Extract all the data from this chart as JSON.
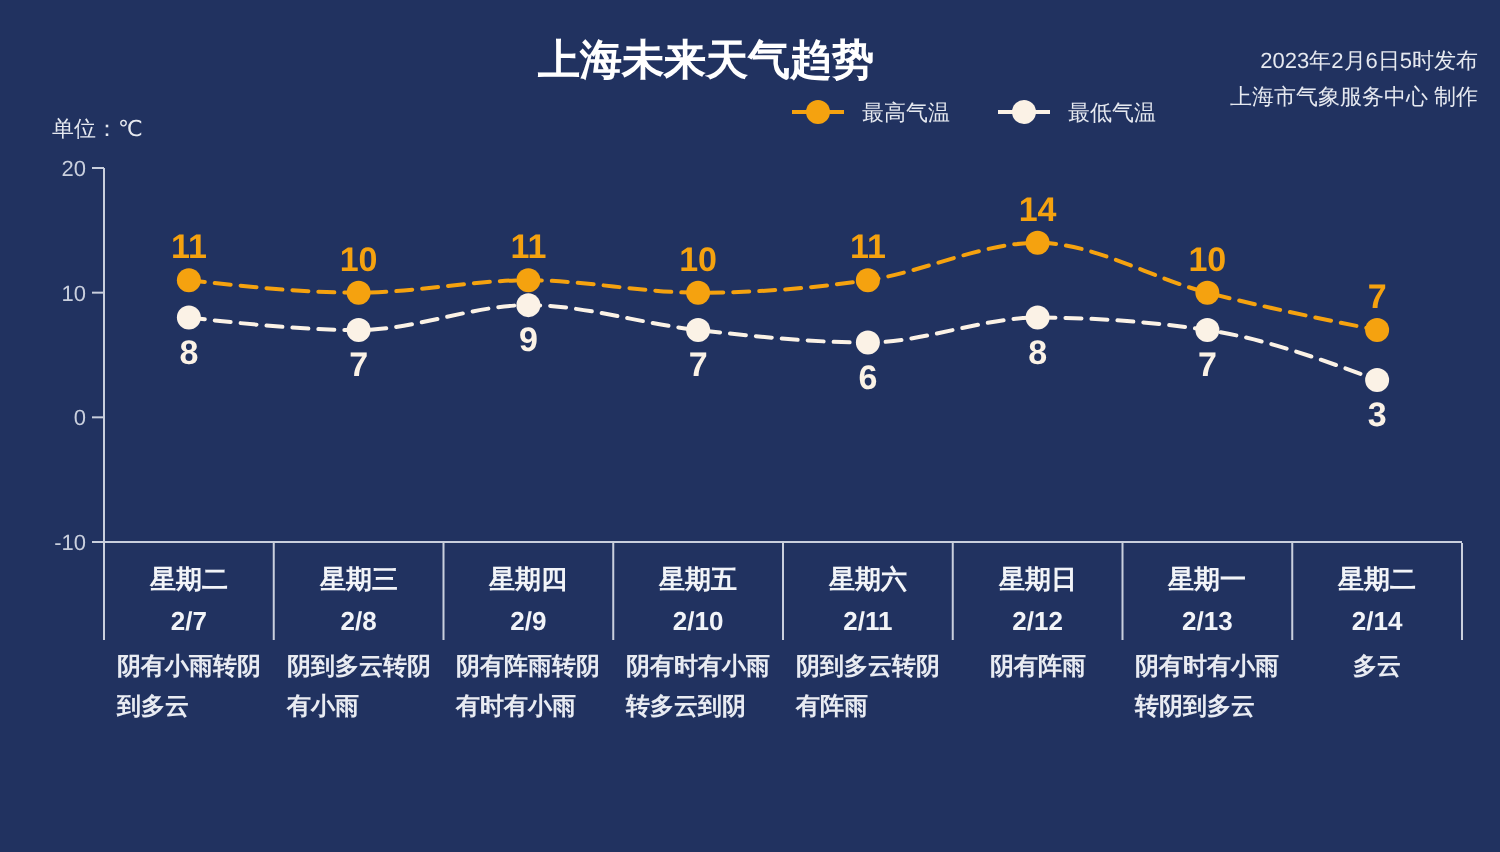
{
  "chart_data": {
    "type": "line",
    "title": "上海未来天气趋势",
    "ylabel": "单位：℃",
    "categories": [
      "星期二\n2/7",
      "星期三\n2/8",
      "星期四\n2/9",
      "星期五\n2/10",
      "星期六\n2/11",
      "星期日\n2/12",
      "星期一\n2/13",
      "星期二\n2/14"
    ],
    "series": [
      {
        "name": "最高气温",
        "color": "#f5a20f",
        "values": [
          11,
          10,
          11,
          10,
          11,
          14,
          10,
          7
        ]
      },
      {
        "name": "最低气温",
        "color": "#fbf2e6",
        "values": [
          8,
          7,
          9,
          7,
          6,
          8,
          7,
          3
        ]
      }
    ],
    "ylim": [
      -10,
      20
    ],
    "yticks": [
      -10,
      0,
      10,
      20
    ],
    "marker": "circle",
    "line_style": "dashed",
    "legend": "top right",
    "data_labels": true,
    "annotations": [
      "2023年2月6日5时发布",
      "上海市气象服务中心 制作",
      "阴有小雨转阴到多云",
      "阴到多云转阴有小雨",
      "阴有阵雨转阴有时有小雨",
      "阴有时有小雨转多云到阴",
      "阴到多云转阴有阵雨",
      "阴有阵雨",
      "阴有时有小雨转阴到多云",
      "多云"
    ]
  }
}
